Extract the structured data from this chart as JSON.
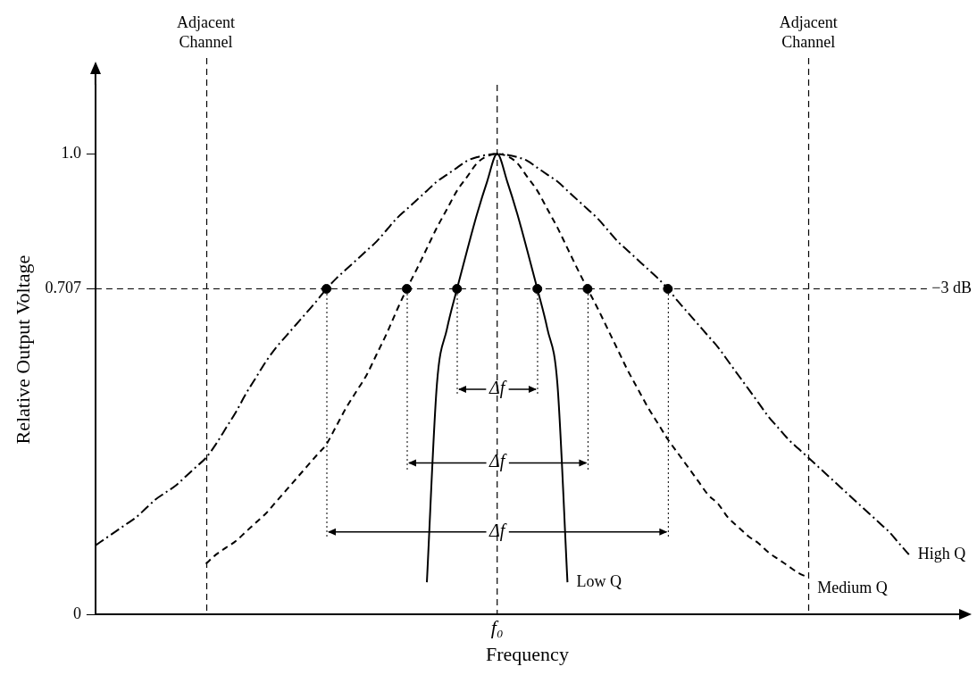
{
  "chart_data": {
    "type": "line",
    "xlabel": "Frequency",
    "ylabel": "Relative Output Voltage",
    "categories": [
      null,
      null,
      null,
      null,
      null,
      null,
      null,
      null,
      null,
      null,
      null,
      null,
      null,
      null,
      null,
      null,
      null,
      null,
      null,
      null,
      null,
      null,
      null,
      null,
      null,
      null,
      null,
      null,
      null,
      null,
      null,
      null,
      null,
      null,
      null,
      null,
      null,
      null,
      null,
      null,
      "f₀",
      null,
      null,
      null,
      null,
      null,
      null,
      null,
      null,
      null,
      null,
      null,
      null,
      null,
      null,
      null,
      null,
      null,
      null,
      null,
      null,
      null,
      null,
      null,
      null,
      null,
      null,
      null,
      null,
      null,
      null,
      null,
      null,
      null,
      null,
      null,
      null,
      null,
      null,
      null,
      null,
      null,
      null,
      null,
      null,
      null,
      null
    ],
    "ylim": [
      0,
      1.15
    ],
    "yticks": [
      {
        "value": 0,
        "label": "0"
      },
      {
        "value": 0.707,
        "label": "0.707"
      },
      {
        "value": 1,
        "label": "1.0"
      }
    ],
    "grid": "x",
    "legend": false,
    "series": [
      {
        "name": "High Q",
        "type": "line",
        "line_style": "dashdot",
        "marker": "none",
        "color": "#000000",
        "values": [
          0.15,
          0.165,
          0.18,
          0.195,
          0.21,
          0.23,
          0.25,
          0.265,
          0.28,
          0.3,
          0.32,
          0.34,
          0.37,
          0.405,
          0.44,
          0.48,
          0.515,
          0.55,
          0.58,
          0.605,
          0.63,
          0.655,
          0.68,
          0.707,
          0.73,
          0.75,
          0.77,
          0.79,
          0.81,
          0.835,
          0.86,
          0.88,
          0.9,
          0.92,
          0.94,
          0.955,
          0.97,
          0.985,
          0.993,
          0.998,
          1.0,
          0.998,
          0.993,
          0.985,
          0.97,
          0.955,
          0.94,
          0.92,
          0.9,
          0.88,
          0.86,
          0.835,
          0.81,
          0.79,
          0.77,
          0.75,
          0.73,
          0.707,
          0.68,
          0.655,
          0.63,
          0.605,
          0.58,
          0.55,
          0.52,
          0.49,
          0.46,
          0.43,
          0.405,
          0.38,
          0.36,
          0.34,
          0.32,
          0.3,
          0.28,
          0.26,
          0.24,
          0.22,
          0.2,
          0.18,
          0.155,
          0.13,
          null,
          null,
          null,
          null,
          null
        ]
      },
      {
        "name": "Medium Q",
        "type": "line",
        "line_style": "dashed",
        "marker": "none",
        "color": "#000000",
        "values": [
          null,
          null,
          null,
          null,
          null,
          null,
          null,
          null,
          null,
          null,
          null,
          0.11,
          0.13,
          0.145,
          0.16,
          0.18,
          0.2,
          0.22,
          0.245,
          0.27,
          0.295,
          0.32,
          0.345,
          0.37,
          0.41,
          0.45,
          0.485,
          0.52,
          0.565,
          0.61,
          0.66,
          0.707,
          0.75,
          0.795,
          0.84,
          0.88,
          0.92,
          0.95,
          0.98,
          0.995,
          1.0,
          0.995,
          0.98,
          0.95,
          0.92,
          0.88,
          0.84,
          0.795,
          0.75,
          0.707,
          0.665,
          0.62,
          0.575,
          0.53,
          0.49,
          0.45,
          0.415,
          0.38,
          0.35,
          0.32,
          0.29,
          0.26,
          0.24,
          0.21,
          0.19,
          0.17,
          0.155,
          0.135,
          0.12,
          0.105,
          0.09,
          0.08,
          null,
          null,
          null,
          null,
          null,
          null,
          null,
          null,
          null,
          null,
          null,
          null,
          null,
          null,
          null
        ]
      },
      {
        "name": "Low Q",
        "type": "line",
        "line_style": "solid",
        "marker": "none",
        "color": "#000000",
        "values": [
          null,
          null,
          null,
          null,
          null,
          null,
          null,
          null,
          null,
          null,
          null,
          null,
          null,
          null,
          null,
          null,
          null,
          null,
          null,
          null,
          null,
          null,
          null,
          null,
          null,
          null,
          null,
          null,
          null,
          null,
          null,
          null,
          null,
          0.07,
          0.5,
          0.62,
          0.707,
          0.79,
          0.87,
          0.94,
          1.0,
          0.94,
          0.87,
          0.79,
          0.707,
          0.62,
          0.5,
          0.07,
          null,
          null,
          null,
          null,
          null,
          null,
          null,
          null,
          null,
          null,
          null,
          null,
          null,
          null,
          null,
          null,
          null,
          null,
          null,
          null,
          null,
          null,
          null,
          null,
          null,
          null,
          null,
          null,
          null,
          null,
          null,
          null,
          null,
          null,
          null,
          null,
          null,
          null,
          null
        ]
      },
      {
        "type": "scatter",
        "marker": "circle",
        "color": "#000000",
        "values": [
          null,
          null,
          null,
          null,
          null,
          null,
          null,
          null,
          null,
          null,
          null,
          null,
          null,
          null,
          null,
          null,
          null,
          null,
          null,
          null,
          null,
          null,
          null,
          0.707,
          null,
          null,
          null,
          null,
          null,
          null,
          null,
          0.707,
          null,
          null,
          null,
          null,
          0.707,
          null,
          null,
          null,
          null,
          null,
          null,
          null,
          0.707,
          null,
          null,
          null,
          null,
          0.707,
          null,
          null,
          null,
          null,
          null,
          null,
          null,
          0.707,
          null,
          null,
          null,
          null,
          null,
          null,
          null,
          null,
          null,
          null,
          null,
          null,
          null,
          null,
          null,
          null,
          null,
          null,
          null,
          null,
          null,
          null,
          null,
          null,
          null,
          null,
          null,
          null,
          null
        ]
      }
    ],
    "ref_lines": [
      {
        "axis": "y",
        "value": 0.707,
        "label": "−3 dB",
        "line_style": "dashed"
      }
    ],
    "annotations": [
      "Adjacent Channel",
      "Adjacent Channel",
      "Δf",
      "Δf",
      "Δf"
    ]
  }
}
